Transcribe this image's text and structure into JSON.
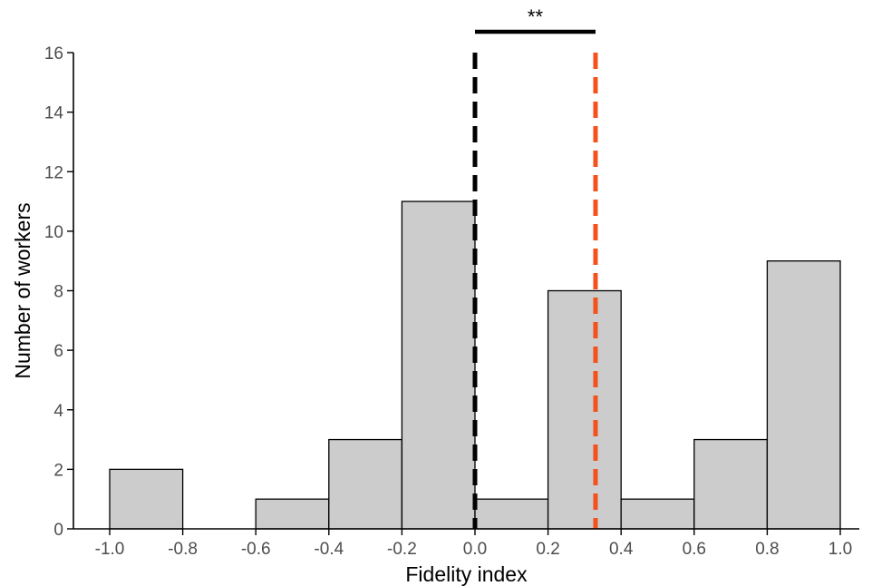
{
  "chart_data": {
    "type": "bar",
    "subtype": "histogram",
    "bins": [
      {
        "start": -1.0,
        "end": -0.8,
        "count": 2
      },
      {
        "start": -0.8,
        "end": -0.6,
        "count": 0
      },
      {
        "start": -0.6,
        "end": -0.4,
        "count": 1
      },
      {
        "start": -0.4,
        "end": -0.2,
        "count": 3
      },
      {
        "start": -0.2,
        "end": 0.0,
        "count": 11
      },
      {
        "start": 0.0,
        "end": 0.2,
        "count": 1
      },
      {
        "start": 0.2,
        "end": 0.4,
        "count": 8
      },
      {
        "start": 0.4,
        "end": 0.6,
        "count": 1
      },
      {
        "start": 0.6,
        "end": 0.8,
        "count": 3
      },
      {
        "start": 0.8,
        "end": 1.0,
        "count": 9
      }
    ],
    "xlabel": "Fidelity index",
    "ylabel": "Number of workers",
    "xlim": [
      -1.1,
      1.08
    ],
    "ylim": [
      0,
      16
    ],
    "xticks": [
      -1.0,
      -0.8,
      -0.6,
      -0.4,
      -0.2,
      0.0,
      0.2,
      0.4,
      0.6,
      0.8,
      1.0
    ],
    "xtick_labels": [
      "-1.0",
      "-0.8",
      "-0.6",
      "-0.4",
      "-0.2",
      "0.0",
      "0.2",
      "0.4",
      "0.6",
      "0.8",
      "1.0"
    ],
    "yticks": [
      0,
      2,
      4,
      6,
      8,
      10,
      12,
      14,
      16
    ],
    "ytick_labels": [
      "0",
      "2",
      "4",
      "6",
      "8",
      "10",
      "12",
      "14",
      "16"
    ],
    "bar_fill": "#cccccc",
    "reference_lines": [
      {
        "x": 0.0,
        "color": "#000000",
        "style": "dashed"
      },
      {
        "x": 0.33,
        "color": "#f4511e",
        "style": "dashed"
      }
    ],
    "significance": {
      "x_from": 0.0,
      "x_to": 0.33,
      "label": "**"
    },
    "grid": false
  }
}
